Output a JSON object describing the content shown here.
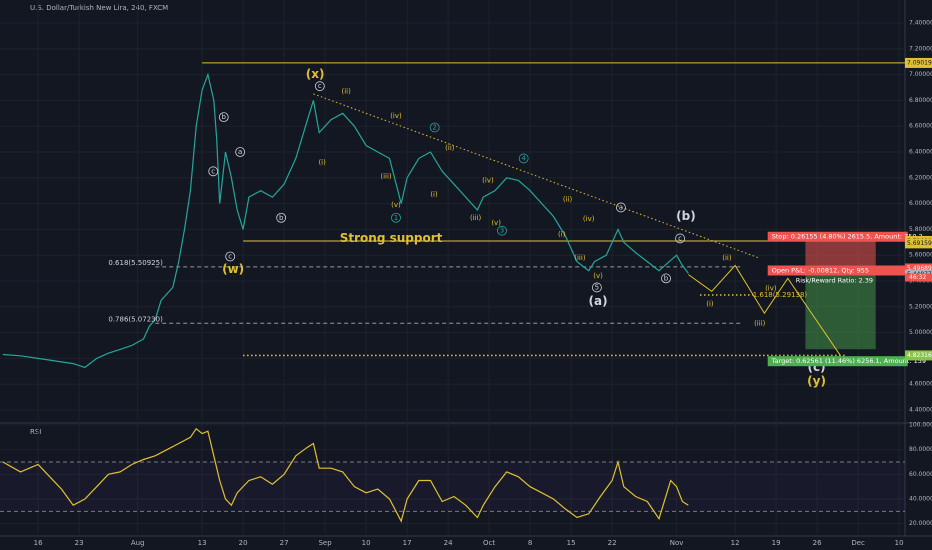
{
  "chart_data": [
    {
      "type": "line",
      "title": "U.S. Dollar/Turkish New Lira, 240, FXCM",
      "xlim": [
        -6.5,
        148
      ],
      "ylim": [
        4.307,
        7.578
      ],
      "xticks": [
        {
          "value": 0,
          "label": "16"
        },
        {
          "value": 7,
          "label": "23"
        },
        {
          "value": 17,
          "label": "Aug"
        },
        {
          "value": 28,
          "label": "13"
        },
        {
          "value": 35,
          "label": "20"
        },
        {
          "value": 42,
          "label": "27"
        },
        {
          "value": 49,
          "label": "Sep"
        },
        {
          "value": 56,
          "label": "10"
        },
        {
          "value": 63,
          "label": "17"
        },
        {
          "value": 70,
          "label": "24"
        },
        {
          "value": 77,
          "label": "Oct"
        },
        {
          "value": 84,
          "label": "8"
        },
        {
          "value": 91,
          "label": "15"
        },
        {
          "value": 98,
          "label": "22"
        },
        {
          "value": 109,
          "label": "Nov"
        },
        {
          "value": 119,
          "label": "12"
        },
        {
          "value": 126,
          "label": "19"
        },
        {
          "value": 133,
          "label": "26"
        },
        {
          "value": 140,
          "label": "Dec"
        },
        {
          "value": 147,
          "label": "10"
        }
      ],
      "yticks": [
        {
          "value": 4.4,
          "label": "4.40000"
        },
        {
          "value": 4.6,
          "label": "4.60000"
        },
        {
          "value": 4.8,
          "label": "4.80000"
        },
        {
          "value": 5.0,
          "label": "5.00000"
        },
        {
          "value": 5.2,
          "label": "5.20000"
        },
        {
          "value": 5.4,
          "label": "5.40000"
        },
        {
          "value": 5.6,
          "label": "5.60000"
        },
        {
          "value": 5.8,
          "label": "5.80000"
        },
        {
          "value": 6.0,
          "label": "6.00000"
        },
        {
          "value": 6.2,
          "label": "6.20000"
        },
        {
          "value": 6.4,
          "label": "6.40000"
        },
        {
          "value": 6.6,
          "label": "6.60000"
        },
        {
          "value": 6.8,
          "label": "6.80000"
        },
        {
          "value": 7.0,
          "label": "7.00000"
        },
        {
          "value": 7.2,
          "label": "7.20000"
        },
        {
          "value": 7.4,
          "label": "7.40000"
        }
      ],
      "x": [
        -6,
        -3,
        0,
        3,
        6,
        8,
        10,
        12,
        14,
        16,
        18,
        19,
        20,
        21,
        22,
        23,
        24,
        25,
        26,
        27,
        28,
        29,
        30,
        30.5,
        31,
        32,
        33,
        34,
        35,
        36,
        38,
        40,
        42,
        44,
        46,
        47,
        48,
        50,
        52,
        54,
        56,
        58,
        60,
        62,
        63,
        65,
        67,
        69,
        71,
        73,
        75,
        76,
        78,
        80,
        82,
        84,
        86,
        88,
        90,
        92,
        94,
        95,
        97,
        99,
        100,
        102,
        104,
        106,
        108,
        109,
        110,
        111
      ],
      "series": [
        {
          "color": "#26a69a",
          "values": [
            4.83,
            4.82,
            4.8,
            4.78,
            4.76,
            4.73,
            4.8,
            4.84,
            4.87,
            4.9,
            4.95,
            5.05,
            5.1,
            5.25,
            5.3,
            5.35,
            5.55,
            5.8,
            6.1,
            6.6,
            6.88,
            7.0,
            6.8,
            6.5,
            6.0,
            6.4,
            6.2,
            5.95,
            5.8,
            6.05,
            6.1,
            6.05,
            6.15,
            6.35,
            6.65,
            6.8,
            6.55,
            6.65,
            6.7,
            6.6,
            6.45,
            6.4,
            6.35,
            6.0,
            6.2,
            6.35,
            6.4,
            6.25,
            6.15,
            6.05,
            5.95,
            6.05,
            6.1,
            6.2,
            6.18,
            6.1,
            6.0,
            5.9,
            5.75,
            5.55,
            5.48,
            5.55,
            5.6,
            5.8,
            5.7,
            5.62,
            5.55,
            5.48,
            5.56,
            5.6,
            5.52,
            5.46
          ]
        }
      ],
      "levels": [
        {
          "value": 7.09019,
          "x": [
            28,
            148
          ],
          "color": "#e0c030",
          "style": "solid"
        },
        {
          "value": 5.71032,
          "x": [
            35,
            148
          ],
          "color": "#e0c030",
          "style": "solid"
        },
        {
          "value": 5.50925,
          "x": [
            20,
            120
          ],
          "color": "#9598a1",
          "style": "dashed"
        },
        {
          "value": 5.0723,
          "x": [
            20,
            120
          ],
          "color": "#9598a1",
          "style": "dashed"
        },
        {
          "value": 5.29138,
          "x": [
            113,
            122
          ],
          "color": "#e0c030",
          "style": "dotted"
        },
        {
          "value": 4.82316,
          "x": [
            35,
            138
          ],
          "color": "#e0c030",
          "style": "dotted"
        }
      ],
      "trendline": {
        "x": [
          47,
          123
        ],
        "y": [
          6.85,
          5.58
        ],
        "color": "#e0c030"
      },
      "projection": {
        "x": [
          111,
          115,
          119,
          124,
          128,
          137
        ],
        "y": [
          5.45,
          5.32,
          5.52,
          5.15,
          5.42,
          4.82
        ],
        "color": "#e0c030"
      },
      "position": {
        "x": [
          131,
          143
        ],
        "entry": 5.49689,
        "stop": 5.75844,
        "target": 4.87128,
        "stop_text": "Stop: 0.26155 (4.80%) 2615.5, Amount: 750.2",
        "pnl_text": "Open P&L: -0.00812, Qty: 955",
        "rr_text": "Risk/Reward Ratio: 2.39",
        "target_text": "Target: 0.62561 (11.46%) 6256.1, Amount: 159"
      },
      "price_labels": [
        {
          "value": 7.09019,
          "label": "7.09019",
          "color": "#e0c030"
        },
        {
          "value": 5.71032,
          "label": "5.71032",
          "color": "#e0c030"
        },
        {
          "value": 5.69159,
          "label": "5.69159",
          "color": "#e0c030"
        },
        {
          "value": 5.49689,
          "label": "5.49689",
          "color": "#ef5350"
        },
        {
          "value": 5.44877,
          "label": "5.44877",
          "color": "#b2b5be"
        },
        {
          "value": 4.82316,
          "label": "4.82316",
          "color": "#8bc34a"
        }
      ],
      "countdown": "46:32",
      "annotations": [
        {
          "text": "(x)",
          "x": 47.3,
          "y": 7.0,
          "color": "#e0c030",
          "size": "big"
        },
        {
          "text": "c",
          "x": 48.1,
          "y": 6.91,
          "color": "#d1d4dc",
          "circle": true
        },
        {
          "text": "(ii)",
          "x": 52.6,
          "y": 6.87,
          "color": "#e0c030"
        },
        {
          "text": "b",
          "x": 31.7,
          "y": 6.67,
          "color": "#d1d4dc",
          "circle": true
        },
        {
          "text": "a",
          "x": 34.5,
          "y": 6.4,
          "color": "#d1d4dc",
          "circle": true
        },
        {
          "text": "c",
          "x": 29.9,
          "y": 6.25,
          "color": "#d1d4dc",
          "circle": true
        },
        {
          "text": "(iv)",
          "x": 61.1,
          "y": 6.68,
          "color": "#e0c030"
        },
        {
          "text": "2",
          "x": 67.7,
          "y": 6.59,
          "color": "#26a69a",
          "circle": true
        },
        {
          "text": "(ii)",
          "x": 70.3,
          "y": 6.43,
          "color": "#e0c030"
        },
        {
          "text": "(i)",
          "x": 48.5,
          "y": 6.32,
          "color": "#e0c030"
        },
        {
          "text": "4",
          "x": 82.9,
          "y": 6.35,
          "color": "#26a69a",
          "circle": true
        },
        {
          "text": "(iii)",
          "x": 59.4,
          "y": 6.21,
          "color": "#e0c030"
        },
        {
          "text": "(iv)",
          "x": 76.8,
          "y": 6.18,
          "color": "#e0c030"
        },
        {
          "text": "(i)",
          "x": 67.6,
          "y": 6.07,
          "color": "#e0c030"
        },
        {
          "text": "(v)",
          "x": 61.1,
          "y": 5.99,
          "color": "#e0c030"
        },
        {
          "text": "1",
          "x": 61.1,
          "y": 5.89,
          "color": "#26a69a",
          "circle": true
        },
        {
          "text": "(ii)",
          "x": 90.4,
          "y": 6.03,
          "color": "#e0c030"
        },
        {
          "text": "b",
          "x": 41.5,
          "y": 5.89,
          "color": "#d1d4dc",
          "circle": true
        },
        {
          "text": "(iii)",
          "x": 74.7,
          "y": 5.89,
          "color": "#e0c030"
        },
        {
          "text": "(v)",
          "x": 78.2,
          "y": 5.85,
          "color": "#e0c030"
        },
        {
          "text": "3",
          "x": 79.2,
          "y": 5.79,
          "color": "#26a69a",
          "circle": true
        },
        {
          "text": "a",
          "x": 99.5,
          "y": 5.97,
          "color": "#d1d4dc",
          "circle": true
        },
        {
          "text": "(b)",
          "x": 110.6,
          "y": 5.9,
          "color": "#d1d4dc",
          "size": "big"
        },
        {
          "text": "(iv)",
          "x": 94,
          "y": 5.88,
          "color": "#e0c030"
        },
        {
          "text": "(i)",
          "x": 89.4,
          "y": 5.76,
          "color": "#e0c030"
        },
        {
          "text": "c",
          "x": 109.6,
          "y": 5.73,
          "color": "#d1d4dc",
          "circle": true
        },
        {
          "text": "Strong support",
          "x": 51.5,
          "y": 5.73,
          "color": "#e0c030",
          "size": "big"
        },
        {
          "text": "c",
          "x": 32.8,
          "y": 5.59,
          "color": "#d1d4dc",
          "circle": true
        },
        {
          "text": "(w)",
          "x": 33.3,
          "y": 5.49,
          "color": "#e0c030",
          "size": "big"
        },
        {
          "text": "(ii)",
          "x": 117.6,
          "y": 5.58,
          "color": "#e0c030"
        },
        {
          "text": "(iii)",
          "x": 92.5,
          "y": 5.58,
          "color": "#e0c030"
        },
        {
          "text": "(v)",
          "x": 95.6,
          "y": 5.44,
          "color": "#e0c030"
        },
        {
          "text": "b",
          "x": 107.2,
          "y": 5.42,
          "color": "#d1d4dc",
          "circle": true
        },
        {
          "text": "5",
          "x": 95.4,
          "y": 5.35,
          "color": "#d1d4dc",
          "circle": true
        },
        {
          "text": "(a)",
          "x": 95.6,
          "y": 5.24,
          "color": "#d1d4dc",
          "size": "big"
        },
        {
          "text": "(iv)",
          "x": 125.1,
          "y": 5.34,
          "color": "#e0c030"
        },
        {
          "text": "(i)",
          "x": 114.7,
          "y": 5.22,
          "color": "#e0c030"
        },
        {
          "text": "(iii)",
          "x": 123.2,
          "y": 5.07,
          "color": "#e0c030"
        },
        {
          "text": "(c)",
          "x": 132.9,
          "y": 4.73,
          "color": "#d1d4dc",
          "size": "big"
        },
        {
          "text": "(y)",
          "x": 132.9,
          "y": 4.62,
          "color": "#e0c030",
          "size": "big"
        },
        {
          "text": "0.618(5.50925)",
          "x": 12,
          "y": 5.54,
          "color": "#d1d4dc"
        },
        {
          "text": "0.786(5.07230)",
          "x": 12,
          "y": 5.1,
          "color": "#d1d4dc"
        },
        {
          "text": "1.618(5.29138)",
          "x": 122,
          "y": 5.29,
          "color": "#e0c030"
        }
      ]
    },
    {
      "type": "line",
      "title": "RSI",
      "xlim": [
        -6.5,
        148
      ],
      "ylim": [
        10,
        100
      ],
      "yticks": [
        {
          "value": 20,
          "label": "20.0000"
        },
        {
          "value": 40,
          "label": "40.0000"
        },
        {
          "value": 60,
          "label": "60.0000"
        },
        {
          "value": 80,
          "label": "80.0000"
        },
        {
          "value": 100,
          "label": "100.000"
        }
      ],
      "bands": [
        30,
        70
      ],
      "x": [
        -6,
        -3,
        0,
        2,
        4,
        6,
        8,
        10,
        12,
        14,
        16,
        18,
        20,
        22,
        24,
        26,
        27,
        28,
        29,
        30,
        31,
        32,
        33,
        34,
        36,
        38,
        40,
        42,
        44,
        46,
        47,
        48,
        50,
        52,
        54,
        56,
        58,
        60,
        62,
        63,
        65,
        67,
        69,
        71,
        73,
        75,
        76,
        78,
        80,
        82,
        84,
        86,
        88,
        90,
        92,
        94,
        96,
        98,
        99,
        100,
        102,
        104,
        106,
        108,
        109,
        110,
        111
      ],
      "series": [
        {
          "color": "#e0c030",
          "values": [
            70,
            62,
            68,
            58,
            48,
            35,
            40,
            50,
            60,
            62,
            68,
            72,
            75,
            80,
            85,
            90,
            97,
            93,
            95,
            75,
            55,
            40,
            35,
            45,
            55,
            58,
            52,
            60,
            75,
            82,
            85,
            65,
            65,
            62,
            50,
            45,
            48,
            40,
            22,
            40,
            55,
            55,
            38,
            42,
            35,
            25,
            35,
            50,
            62,
            58,
            50,
            45,
            40,
            32,
            25,
            28,
            42,
            55,
            70,
            50,
            42,
            38,
            24,
            55,
            50,
            38,
            35
          ]
        }
      ]
    }
  ]
}
